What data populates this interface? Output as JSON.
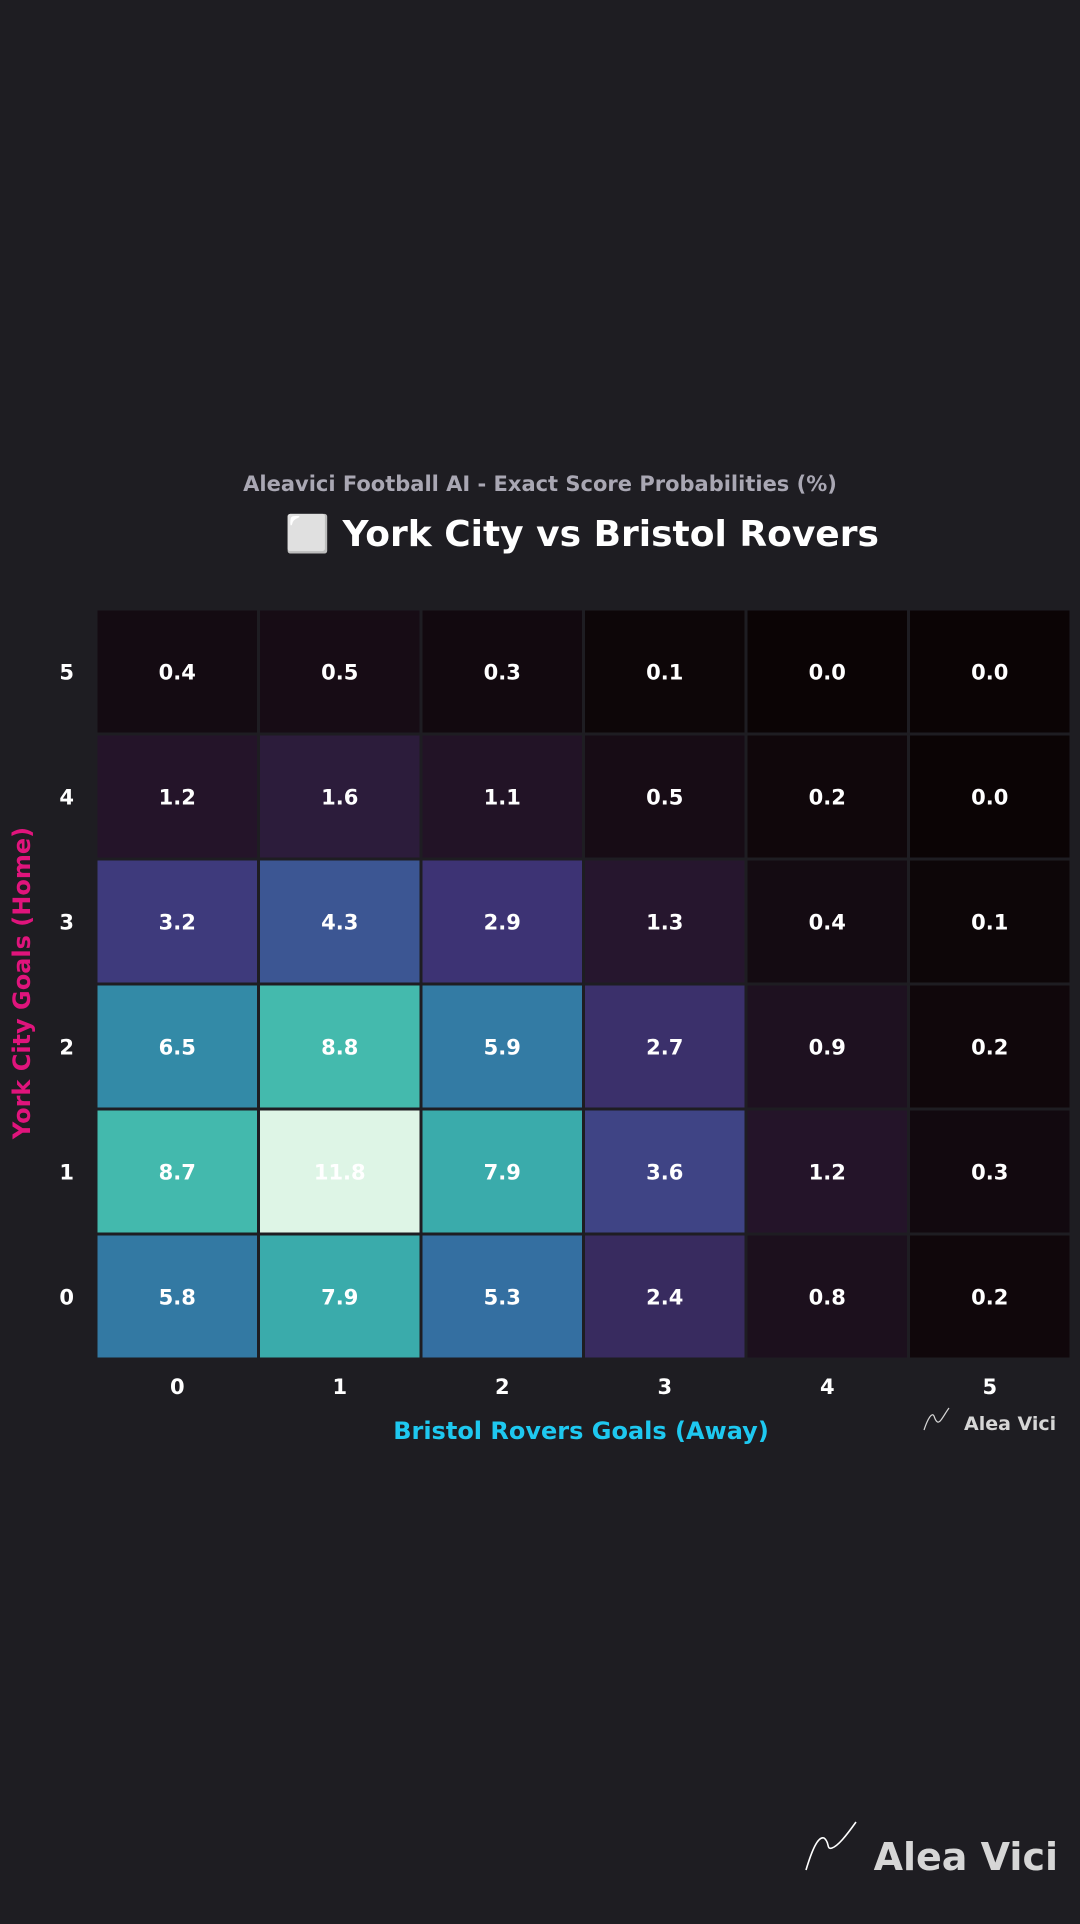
{
  "colors": {
    "background": "#1e1d22",
    "title": "#ffffff",
    "subtitle": "#a9a7b3",
    "home_axis": "#e0147c",
    "away_axis": "#1ec8f0",
    "tick": "#ffffff",
    "cell_border": "#1e1d22",
    "watermark": "#d6d6d6"
  },
  "watermark": {
    "small_label": "Alea Vici",
    "large_label": "Alea Vici",
    "logo_icon": "signature-logo-icon"
  },
  "chart_data": {
    "type": "heatmap",
    "subtitle": "Aleavici Football AI - Exact Score Probabilities (%)",
    "title": "⬜ York City vs Bristol Rovers",
    "title_icon": "football-icon",
    "xlabel": "Bristol Rovers Goals (Away)",
    "ylabel": "York City Goals (Home)",
    "x_categories": [
      "0",
      "1",
      "2",
      "3",
      "4",
      "5"
    ],
    "y_categories": [
      "5",
      "4",
      "3",
      "2",
      "1",
      "0"
    ],
    "values": [
      [
        0.4,
        0.5,
        0.3,
        0.1,
        0.0,
        0.0
      ],
      [
        1.2,
        1.6,
        1.1,
        0.5,
        0.2,
        0.0
      ],
      [
        3.2,
        4.3,
        2.9,
        1.3,
        0.4,
        0.1
      ],
      [
        6.5,
        8.8,
        5.9,
        2.7,
        0.9,
        0.2
      ],
      [
        8.7,
        11.8,
        7.9,
        3.6,
        1.2,
        0.3
      ],
      [
        5.8,
        7.9,
        5.3,
        2.4,
        0.8,
        0.2
      ]
    ],
    "value_format": "0.0",
    "colormap": "mako",
    "grid": false,
    "legend": "none"
  }
}
